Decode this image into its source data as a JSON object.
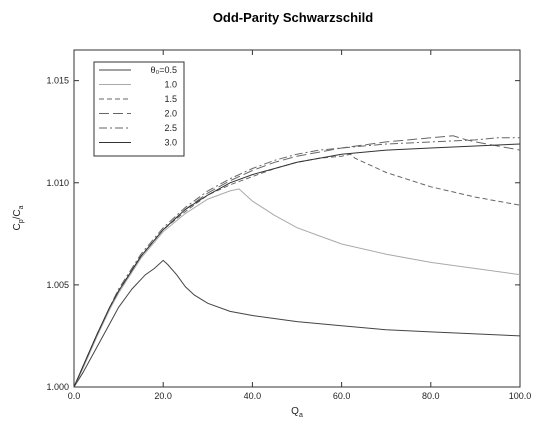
{
  "chart_data": {
    "type": "line",
    "title": "Odd-Parity Schwarzschild",
    "xlabel": "Q",
    "xlabel_sub": "a",
    "ylabel": "C",
    "ylabel_sub": "p",
    "ylabel_mid": "/C",
    "ylabel_sub2": "a",
    "xlim": [
      0,
      100
    ],
    "ylim": [
      1.0,
      1.0165
    ],
    "xticks": [
      "0.0",
      "20.0",
      "40.0",
      "60.0",
      "80.0",
      "100.0"
    ],
    "xtick_values": [
      0,
      20,
      40,
      60,
      80,
      100
    ],
    "yticks": [
      "1.000",
      "1.005",
      "1.010",
      "1.015"
    ],
    "ytick_values": [
      1.0,
      1.005,
      1.01,
      1.015
    ],
    "grid": false,
    "legend_position": "top-left",
    "series": [
      {
        "name": "θ₀=0.5",
        "dash": "",
        "color": "#444444",
        "points": [
          [
            0,
            1.0
          ],
          [
            2,
            1.0007
          ],
          [
            5,
            1.0019
          ],
          [
            8,
            1.0031
          ],
          [
            10,
            1.0039
          ],
          [
            13,
            1.0048
          ],
          [
            16,
            1.0055
          ],
          [
            18,
            1.0058
          ],
          [
            20,
            1.0062
          ],
          [
            21,
            1.006
          ],
          [
            23,
            1.0055
          ],
          [
            25,
            1.0049
          ],
          [
            27,
            1.0045
          ],
          [
            30,
            1.0041
          ],
          [
            35,
            1.0037
          ],
          [
            40,
            1.0035
          ],
          [
            50,
            1.0032
          ],
          [
            60,
            1.003
          ],
          [
            70,
            1.0028
          ],
          [
            80,
            1.0027
          ],
          [
            90,
            1.0026
          ],
          [
            100,
            1.0025
          ]
        ]
      },
      {
        "name": "1.0",
        "dash": "",
        "color": "#aaaaaa",
        "points": [
          [
            0,
            1.0
          ],
          [
            2,
            1.0009
          ],
          [
            5,
            1.0024
          ],
          [
            8,
            1.0038
          ],
          [
            10,
            1.0046
          ],
          [
            15,
            1.0063
          ],
          [
            20,
            1.0076
          ],
          [
            25,
            1.0085
          ],
          [
            30,
            1.0092
          ],
          [
            35,
            1.0096
          ],
          [
            37,
            1.0097
          ],
          [
            38,
            1.0095
          ],
          [
            40,
            1.0091
          ],
          [
            45,
            1.0084
          ],
          [
            50,
            1.0078
          ],
          [
            55,
            1.0074
          ],
          [
            60,
            1.007
          ],
          [
            70,
            1.0065
          ],
          [
            80,
            1.0061
          ],
          [
            90,
            1.0058
          ],
          [
            100,
            1.0055
          ]
        ]
      },
      {
        "name": "1.5",
        "dash": "5,3",
        "color": "#666666",
        "points": [
          [
            0,
            1.0
          ],
          [
            2,
            1.001
          ],
          [
            5,
            1.0025
          ],
          [
            8,
            1.0039
          ],
          [
            10,
            1.0047
          ],
          [
            15,
            1.0064
          ],
          [
            20,
            1.0077
          ],
          [
            25,
            1.0086
          ],
          [
            30,
            1.0094
          ],
          [
            35,
            1.0099
          ],
          [
            40,
            1.0103
          ],
          [
            45,
            1.0107
          ],
          [
            50,
            1.011
          ],
          [
            55,
            1.0112
          ],
          [
            60,
            1.0113
          ],
          [
            62,
            1.0114
          ],
          [
            63,
            1.0112
          ],
          [
            65,
            1.011
          ],
          [
            70,
            1.0105
          ],
          [
            80,
            1.0098
          ],
          [
            90,
            1.0093
          ],
          [
            100,
            1.0089
          ]
        ]
      },
      {
        "name": "2.0",
        "dash": "10,4",
        "color": "#666666",
        "points": [
          [
            0,
            1.0
          ],
          [
            2,
            1.001
          ],
          [
            5,
            1.0025
          ],
          [
            8,
            1.0039
          ],
          [
            10,
            1.0047
          ],
          [
            15,
            1.0064
          ],
          [
            20,
            1.0077
          ],
          [
            25,
            1.0087
          ],
          [
            30,
            1.0095
          ],
          [
            35,
            1.0101
          ],
          [
            40,
            1.0106
          ],
          [
            45,
            1.011
          ],
          [
            50,
            1.0113
          ],
          [
            55,
            1.0115
          ],
          [
            60,
            1.0117
          ],
          [
            70,
            1.012
          ],
          [
            80,
            1.0122
          ],
          [
            85,
            1.0123
          ],
          [
            88,
            1.0121
          ],
          [
            90,
            1.012
          ],
          [
            95,
            1.0118
          ],
          [
            100,
            1.0116
          ]
        ]
      },
      {
        "name": "2.5",
        "dash": "8,3,2,3",
        "color": "#666666",
        "points": [
          [
            0,
            1.0
          ],
          [
            2,
            1.001
          ],
          [
            5,
            1.0025
          ],
          [
            8,
            1.0039
          ],
          [
            10,
            1.0048
          ],
          [
            15,
            1.0065
          ],
          [
            20,
            1.0078
          ],
          [
            25,
            1.0088
          ],
          [
            30,
            1.0096
          ],
          [
            35,
            1.0102
          ],
          [
            40,
            1.0107
          ],
          [
            45,
            1.0111
          ],
          [
            50,
            1.0114
          ],
          [
            55,
            1.0116
          ],
          [
            60,
            1.0117
          ],
          [
            70,
            1.0119
          ],
          [
            80,
            1.012
          ],
          [
            90,
            1.0121
          ],
          [
            95,
            1.0122
          ],
          [
            100,
            1.0122
          ]
        ]
      },
      {
        "name": "3.0",
        "dash": "",
        "color": "#333333",
        "points": [
          [
            0,
            1.0
          ],
          [
            2,
            1.001
          ],
          [
            5,
            1.0025
          ],
          [
            8,
            1.0039
          ],
          [
            10,
            1.0047
          ],
          [
            15,
            1.0064
          ],
          [
            20,
            1.0077
          ],
          [
            25,
            1.0087
          ],
          [
            30,
            1.0094
          ],
          [
            35,
            1.01
          ],
          [
            40,
            1.0104
          ],
          [
            45,
            1.0107
          ],
          [
            50,
            1.011
          ],
          [
            55,
            1.0112
          ],
          [
            60,
            1.0114
          ],
          [
            70,
            1.0116
          ],
          [
            80,
            1.0117
          ],
          [
            90,
            1.0118
          ],
          [
            100,
            1.0119
          ]
        ]
      }
    ]
  }
}
